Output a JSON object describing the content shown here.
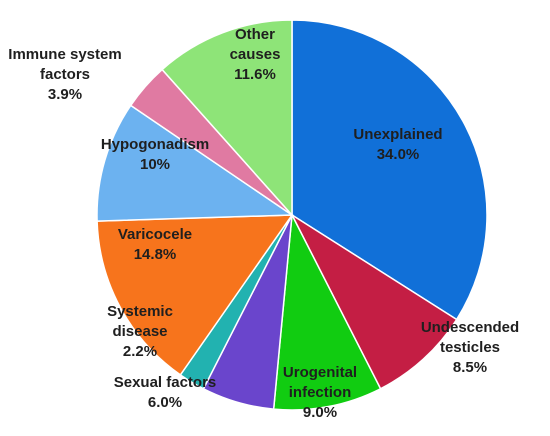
{
  "chart_data": {
    "type": "pie",
    "categories": [
      "Unexplained",
      "Undescended testicles",
      "Urogenital infection",
      "Sexual factors",
      "Systemic disease",
      "Varicocele",
      "Hypogonadism",
      "Immune system factors",
      "Other causes"
    ],
    "values": [
      34.0,
      8.5,
      9.0,
      6.0,
      2.2,
      14.8,
      10,
      3.9,
      11.6
    ],
    "value_labels": [
      "34.0%",
      "8.5%",
      "9.0%",
      "6.0%",
      "2.2%",
      "14.8%",
      "10%",
      "3.9%",
      "11.6%"
    ],
    "colors": [
      "#1170d8",
      "#c41e44",
      "#11cc11",
      "#6a45cc",
      "#22b2b0",
      "#f7741c",
      "#6cb2f0",
      "#e07aa2",
      "#8ee478"
    ]
  }
}
